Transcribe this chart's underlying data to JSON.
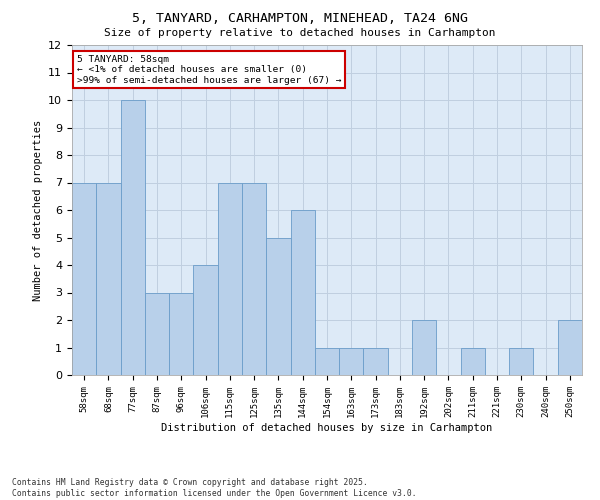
{
  "title1": "5, TANYARD, CARHAMPTON, MINEHEAD, TA24 6NG",
  "title2": "Size of property relative to detached houses in Carhampton",
  "xlabel": "Distribution of detached houses by size in Carhampton",
  "ylabel": "Number of detached properties",
  "categories": [
    "58sqm",
    "68sqm",
    "77sqm",
    "87sqm",
    "96sqm",
    "106sqm",
    "115sqm",
    "125sqm",
    "135sqm",
    "144sqm",
    "154sqm",
    "163sqm",
    "173sqm",
    "183sqm",
    "192sqm",
    "202sqm",
    "211sqm",
    "221sqm",
    "230sqm",
    "240sqm",
    "250sqm"
  ],
  "values": [
    7,
    7,
    10,
    3,
    3,
    4,
    7,
    7,
    5,
    6,
    1,
    1,
    1,
    0,
    2,
    0,
    1,
    0,
    1,
    0,
    2
  ],
  "bar_color": "#b8d0ea",
  "bar_edge_color": "#6a9cc9",
  "background_color": "#ffffff",
  "ax_background": "#ddeaf7",
  "grid_color": "#c0cfe0",
  "annotation_text": "5 TANYARD: 58sqm\n← <1% of detached houses are smaller (0)\n>99% of semi-detached houses are larger (67) →",
  "annotation_box_color": "#ffffff",
  "annotation_box_edge_color": "#cc0000",
  "footer": "Contains HM Land Registry data © Crown copyright and database right 2025.\nContains public sector information licensed under the Open Government Licence v3.0.",
  "ylim": [
    0,
    12
  ],
  "yticks": [
    0,
    1,
    2,
    3,
    4,
    5,
    6,
    7,
    8,
    9,
    10,
    11,
    12
  ]
}
